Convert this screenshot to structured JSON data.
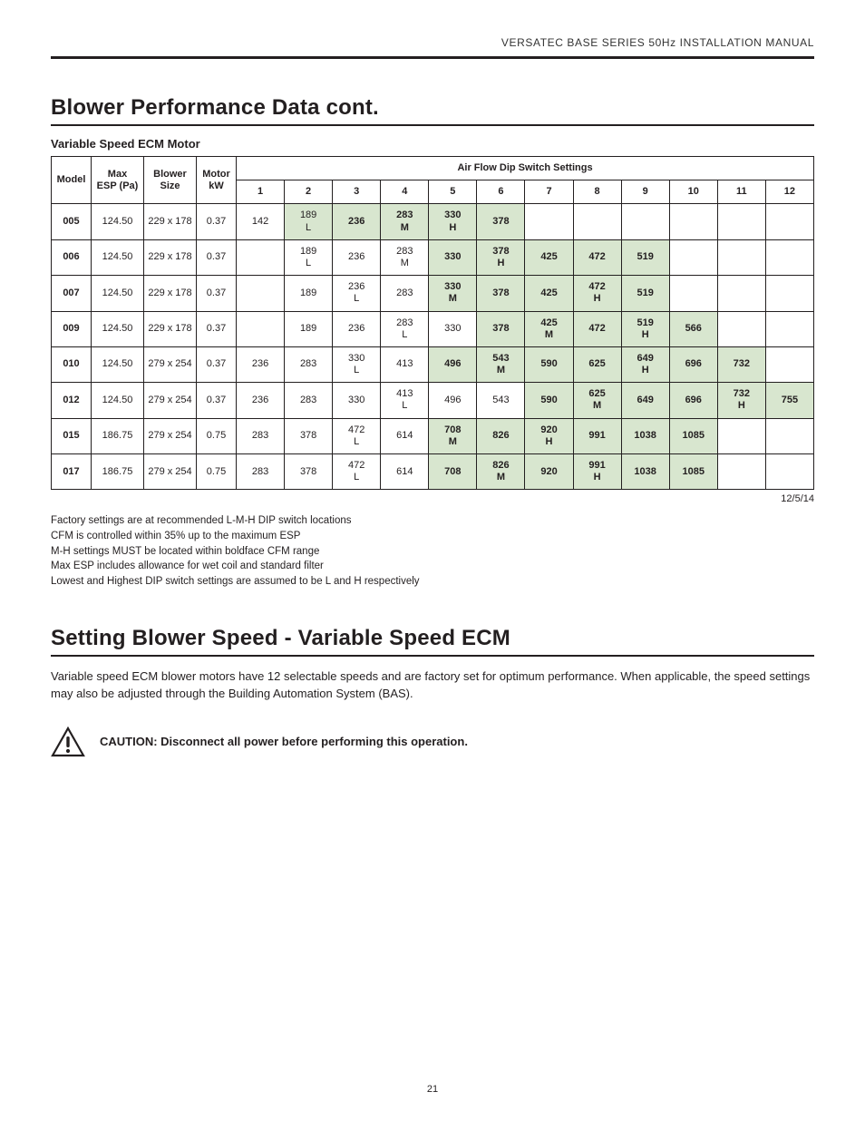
{
  "doc_header": "VERSATEC BASE SERIES 50Hz INSTALLATION MANUAL",
  "section1": {
    "title": "Blower Performance Data cont.",
    "subtitle": "Variable Speed ECM Motor",
    "date": "12/5/14",
    "columns": {
      "model": "Model",
      "esp": "Max ESP (Pa)",
      "blower": "Blower Size",
      "kw": "Motor kW",
      "dip_header": "Air Flow Dip Switch  Settings",
      "dips": [
        "1",
        "2",
        "3",
        "4",
        "5",
        "6",
        "7",
        "8",
        "9",
        "10",
        "11",
        "12"
      ]
    },
    "rows": [
      {
        "model": "005",
        "esp": "124.50",
        "blower": "229 x 178",
        "kw": "0.37",
        "cells": [
          {
            "v": "142"
          },
          {
            "v": "189",
            "sub": "L",
            "hl": true
          },
          {
            "v": "236",
            "bold": true,
            "hl": true
          },
          {
            "v": "283",
            "sub": "M",
            "bold": true,
            "hl": true
          },
          {
            "v": "330",
            "sub": "H",
            "bold": true,
            "hl": true
          },
          {
            "v": "378",
            "bold": true,
            "hl": true
          },
          {
            "v": ""
          },
          {
            "v": ""
          },
          {
            "v": ""
          },
          {
            "v": ""
          },
          {
            "v": ""
          },
          {
            "v": ""
          }
        ]
      },
      {
        "model": "006",
        "esp": "124.50",
        "blower": "229 x 178",
        "kw": "0.37",
        "cells": [
          {
            "v": ""
          },
          {
            "v": "189",
            "sub": "L"
          },
          {
            "v": "236"
          },
          {
            "v": "283",
            "sub": "M"
          },
          {
            "v": "330",
            "bold": true,
            "hl": true
          },
          {
            "v": "378",
            "sub": "H",
            "bold": true,
            "hl": true
          },
          {
            "v": "425",
            "bold": true,
            "hl": true
          },
          {
            "v": "472",
            "bold": true,
            "hl": true
          },
          {
            "v": "519",
            "bold": true,
            "hl": true
          },
          {
            "v": ""
          },
          {
            "v": ""
          },
          {
            "v": ""
          }
        ]
      },
      {
        "model": "007",
        "esp": "124.50",
        "blower": "229 x 178",
        "kw": "0.37",
        "cells": [
          {
            "v": ""
          },
          {
            "v": "189"
          },
          {
            "v": "236",
            "sub": "L"
          },
          {
            "v": "283"
          },
          {
            "v": "330",
            "sub": "M",
            "bold": true,
            "hl": true
          },
          {
            "v": "378",
            "bold": true,
            "hl": true
          },
          {
            "v": "425",
            "bold": true,
            "hl": true
          },
          {
            "v": "472",
            "sub": "H",
            "bold": true,
            "hl": true
          },
          {
            "v": "519",
            "bold": true,
            "hl": true
          },
          {
            "v": ""
          },
          {
            "v": ""
          },
          {
            "v": ""
          }
        ]
      },
      {
        "model": "009",
        "esp": "124.50",
        "blower": "229 x 178",
        "kw": "0.37",
        "cells": [
          {
            "v": ""
          },
          {
            "v": "189"
          },
          {
            "v": "236"
          },
          {
            "v": "283",
            "sub": "L"
          },
          {
            "v": "330"
          },
          {
            "v": "378",
            "bold": true,
            "hl": true
          },
          {
            "v": "425",
            "sub": "M",
            "bold": true,
            "hl": true
          },
          {
            "v": "472",
            "bold": true,
            "hl": true
          },
          {
            "v": "519",
            "sub": "H",
            "bold": true,
            "hl": true
          },
          {
            "v": "566",
            "bold": true,
            "hl": true
          },
          {
            "v": ""
          },
          {
            "v": ""
          }
        ]
      },
      {
        "model": "010",
        "esp": "124.50",
        "blower": "279 x 254",
        "kw": "0.37",
        "cells": [
          {
            "v": "236"
          },
          {
            "v": "283"
          },
          {
            "v": "330",
            "sub": "L"
          },
          {
            "v": "413"
          },
          {
            "v": "496",
            "bold": true,
            "hl": true
          },
          {
            "v": "543",
            "sub": "M",
            "bold": true,
            "hl": true
          },
          {
            "v": "590",
            "bold": true,
            "hl": true
          },
          {
            "v": "625",
            "bold": true,
            "hl": true
          },
          {
            "v": "649",
            "sub": "H",
            "bold": true,
            "hl": true
          },
          {
            "v": "696",
            "bold": true,
            "hl": true
          },
          {
            "v": "732",
            "bold": true,
            "hl": true
          },
          {
            "v": ""
          }
        ]
      },
      {
        "model": "012",
        "esp": "124.50",
        "blower": "279 x 254",
        "kw": "0.37",
        "cells": [
          {
            "v": "236"
          },
          {
            "v": "283"
          },
          {
            "v": "330"
          },
          {
            "v": "413",
            "sub": "L"
          },
          {
            "v": "496"
          },
          {
            "v": "543"
          },
          {
            "v": "590",
            "bold": true,
            "hl": true
          },
          {
            "v": "625",
            "sub": "M",
            "bold": true,
            "hl": true
          },
          {
            "v": "649",
            "bold": true,
            "hl": true
          },
          {
            "v": "696",
            "bold": true,
            "hl": true
          },
          {
            "v": "732",
            "sub": "H",
            "bold": true,
            "hl": true
          },
          {
            "v": "755",
            "bold": true,
            "hl": true
          }
        ]
      },
      {
        "model": "015",
        "esp": "186.75",
        "blower": "279 x 254",
        "kw": "0.75",
        "cells": [
          {
            "v": "283"
          },
          {
            "v": "378"
          },
          {
            "v": "472",
            "sub": "L"
          },
          {
            "v": "614"
          },
          {
            "v": "708",
            "sub": "M",
            "bold": true,
            "hl": true
          },
          {
            "v": "826",
            "bold": true,
            "hl": true
          },
          {
            "v": "920",
            "sub": "H",
            "bold": true,
            "hl": true
          },
          {
            "v": "991",
            "bold": true,
            "hl": true
          },
          {
            "v": "1038",
            "bold": true,
            "hl": true
          },
          {
            "v": "1085",
            "bold": true,
            "hl": true
          },
          {
            "v": ""
          },
          {
            "v": ""
          }
        ]
      },
      {
        "model": "017",
        "esp": "186.75",
        "blower": "279 x 254",
        "kw": "0.75",
        "cells": [
          {
            "v": "283"
          },
          {
            "v": "378"
          },
          {
            "v": "472",
            "sub": "L"
          },
          {
            "v": "614"
          },
          {
            "v": "708",
            "bold": true,
            "hl": true
          },
          {
            "v": "826",
            "sub": "M",
            "bold": true,
            "hl": true
          },
          {
            "v": "920",
            "bold": true,
            "hl": true
          },
          {
            "v": "991",
            "sub": "H",
            "bold": true,
            "hl": true
          },
          {
            "v": "1038",
            "bold": true,
            "hl": true
          },
          {
            "v": "1085",
            "bold": true,
            "hl": true
          },
          {
            "v": ""
          },
          {
            "v": ""
          }
        ]
      }
    ],
    "notes": [
      "Factory settings are at recommended L-M-H DIP switch locations",
      "CFM is controlled within 35% up to the maximum ESP",
      "M-H settings MUST be located within boldface CFM range",
      "Max ESP includes allowance for wet coil and standard filter",
      "Lowest and Highest DIP switch settings are assumed to be L and H respectively"
    ]
  },
  "section2": {
    "title": "Setting Blower Speed - Variable Speed ECM",
    "body": "Variable speed ECM blower motors have 12 selectable speeds and are factory set for optimum performance. When applicable, the speed settings may also be adjusted through the Building Automation System (BAS).",
    "caution": "CAUTION: Disconnect all power before performing this operation."
  },
  "page_number": "21",
  "colors": {
    "highlight": "#d8e6cf",
    "border": "#231f20",
    "text": "#231f20"
  }
}
